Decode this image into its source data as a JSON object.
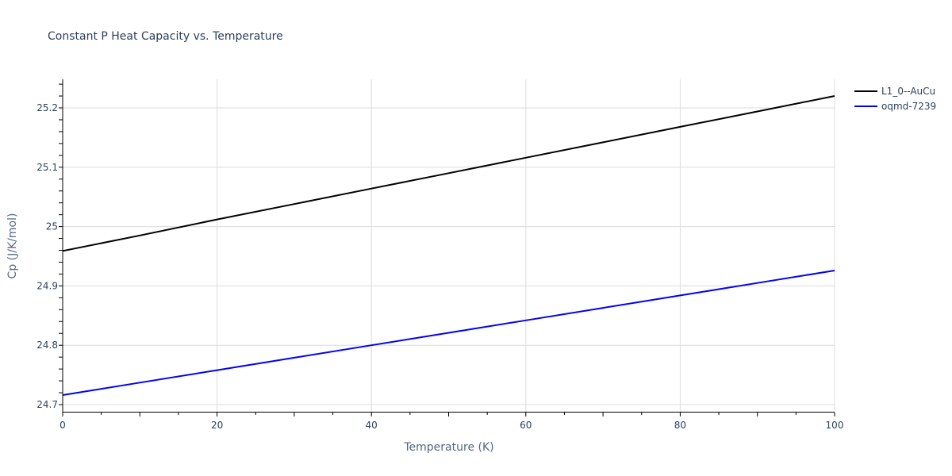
{
  "chart_data": {
    "type": "line",
    "title": "Constant P Heat Capacity vs. Temperature",
    "xlabel": "Temperature (K)",
    "ylabel": "Cp (J/K/mol)",
    "xlim": [
      0,
      100
    ],
    "ylim": [
      24.69,
      25.248
    ],
    "x_ticks": [
      0,
      20,
      40,
      60,
      80,
      100
    ],
    "y_ticks": [
      24.7,
      24.8,
      24.9,
      25,
      25.1,
      25.2
    ],
    "y_tick_labels": [
      "24.7",
      "24.8",
      "24.9",
      "25",
      "25.1",
      "25.2"
    ],
    "grid": true,
    "legend_position": "top-right-outside",
    "x": [
      0,
      10,
      20,
      30,
      40,
      50,
      60,
      70,
      80,
      90,
      100
    ],
    "series": [
      {
        "name": "L1_0--AuCu",
        "color": "#000000",
        "values": [
          24.959,
          24.985,
          25.012,
          25.038,
          25.064,
          25.09,
          25.116,
          25.142,
          25.168,
          25.194,
          25.22
        ]
      },
      {
        "name": "oqmd-7239",
        "color": "#0000ff",
        "values": [
          24.716,
          24.737,
          24.758,
          24.779,
          24.8,
          24.821,
          24.842,
          24.863,
          24.884,
          24.905,
          24.926
        ]
      }
    ]
  }
}
